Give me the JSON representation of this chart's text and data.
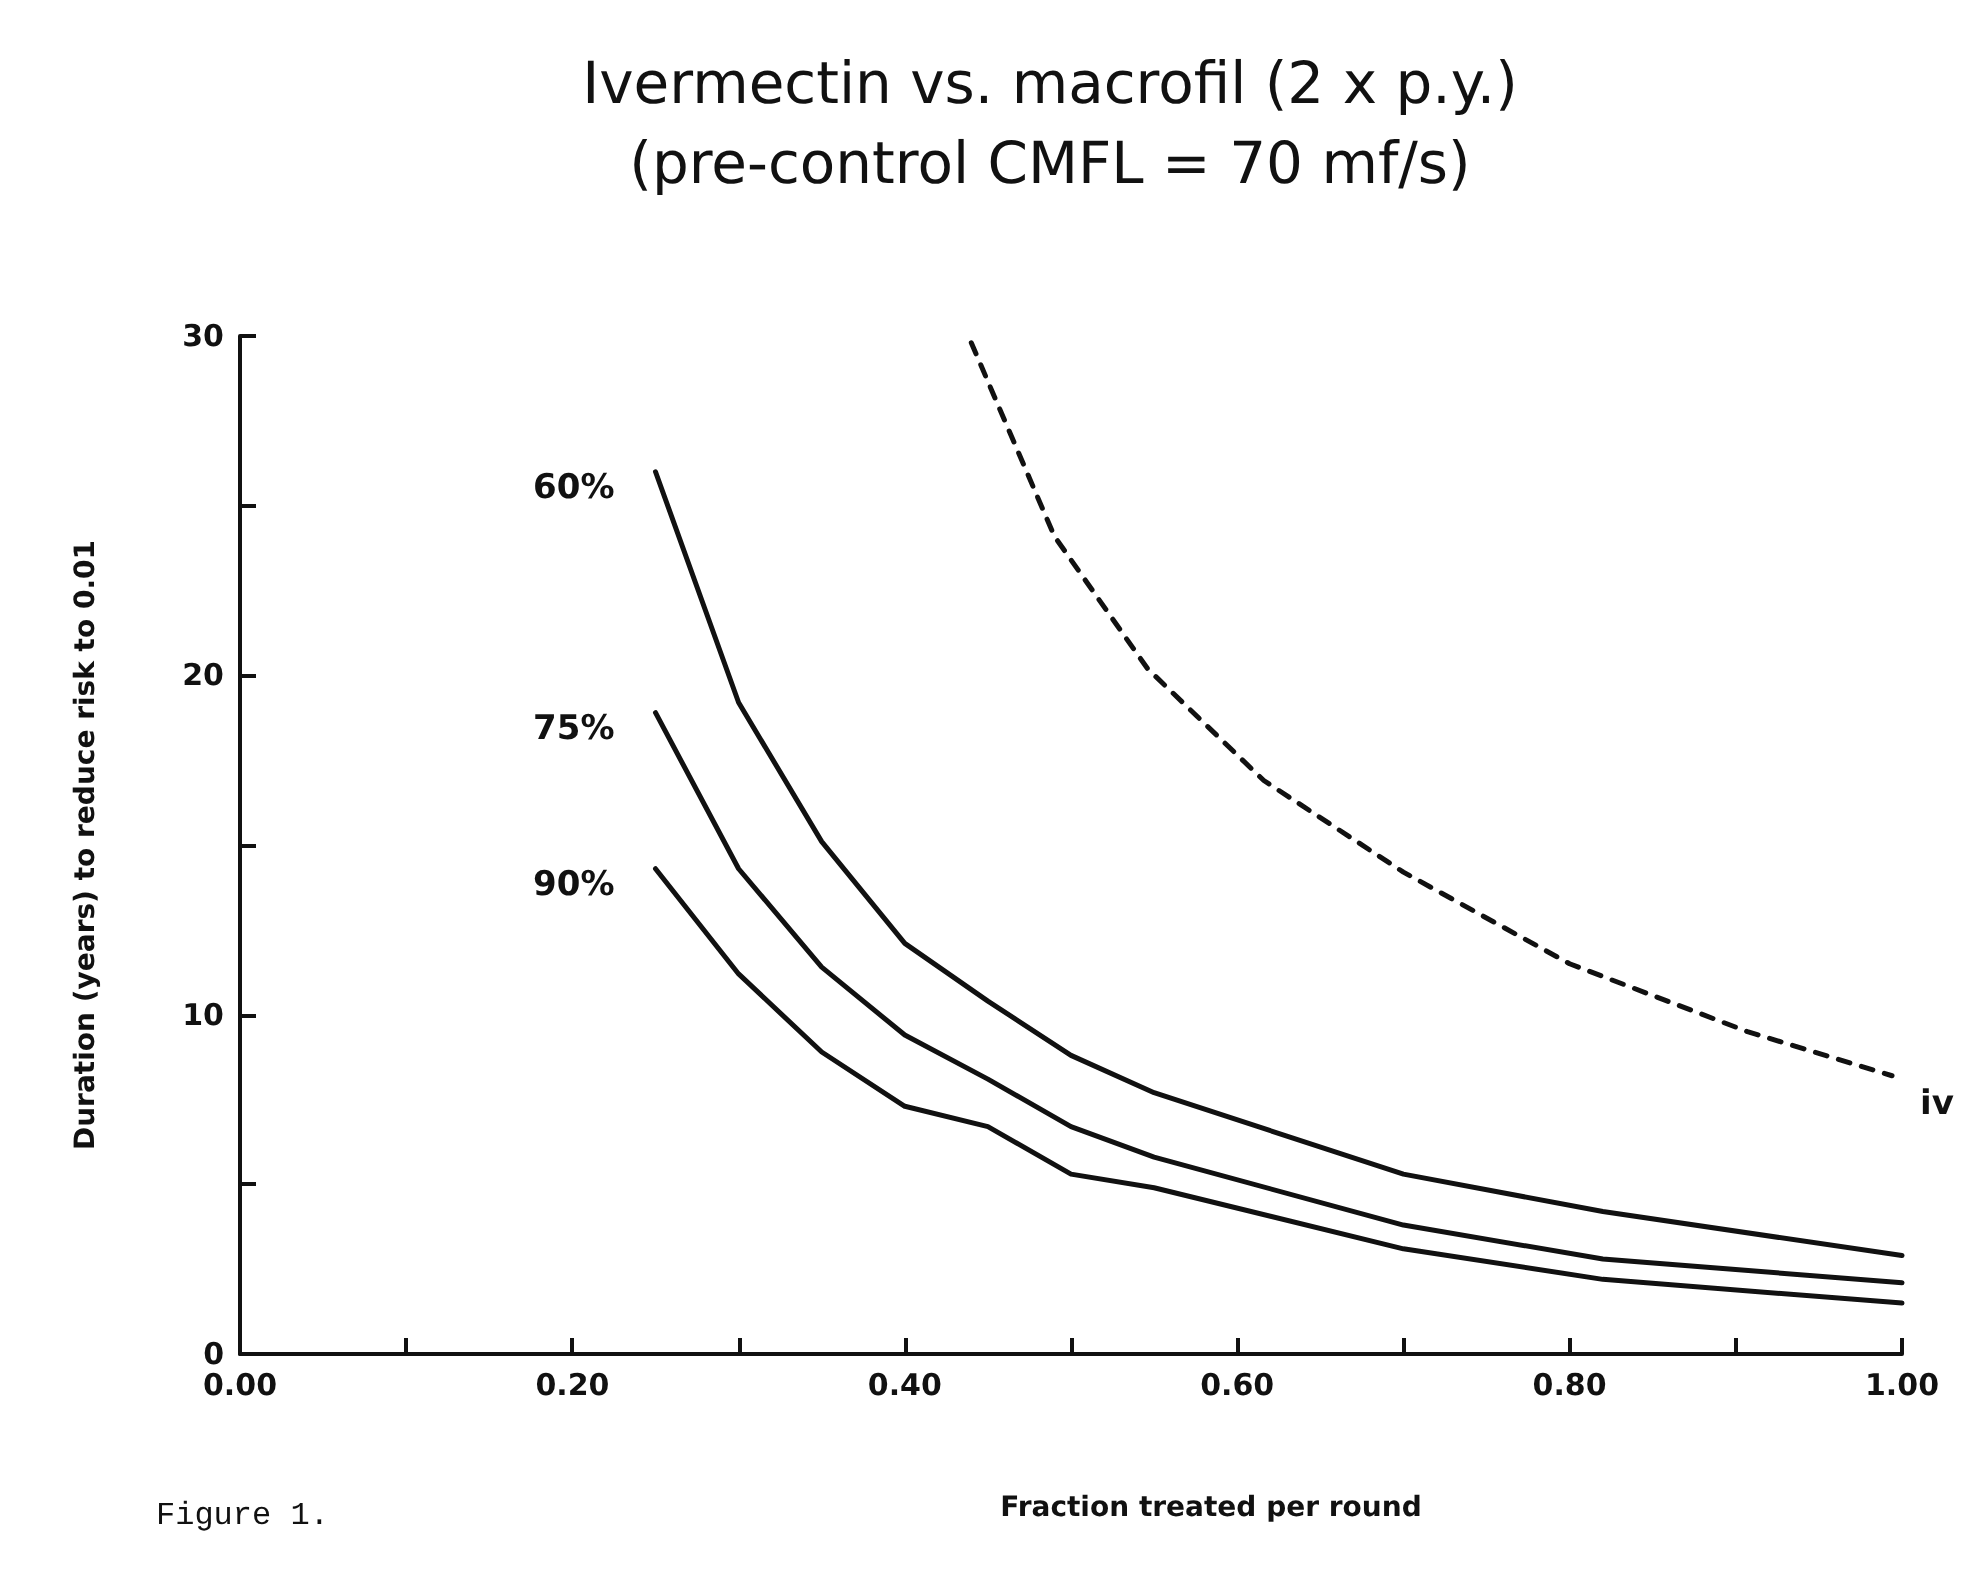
{
  "chart_data": {
    "type": "line",
    "title": "Ivermectin vs. macrofil (2 x p.y.)",
    "subtitle": "(pre-control CMFL = 70 mf/s)",
    "xlabel": "Fraction treated per round",
    "ylabel": "Duration (years) to reduce risk to 0.01",
    "xlim": [
      0,
      1
    ],
    "xticks": [
      {
        "value": 0,
        "label": "0.00"
      },
      {
        "value": 0.1,
        "label": null
      },
      {
        "value": 0.2,
        "label": "0.20"
      },
      {
        "value": 0.3,
        "label": null
      },
      {
        "value": 0.4,
        "label": "0.40"
      },
      {
        "value": 0.5,
        "label": null
      },
      {
        "value": 0.6,
        "label": "0.60"
      },
      {
        "value": 0.7,
        "label": null
      },
      {
        "value": 0.8,
        "label": "0.80"
      },
      {
        "value": 0.9,
        "label": null
      },
      {
        "value": 1,
        "label": "1.00"
      }
    ],
    "ylim": [
      0,
      30
    ],
    "yticks": [
      0,
      {
        "value": 5,
        "label": null
      },
      10,
      {
        "value": 15,
        "label": null
      },
      20,
      {
        "value": 25,
        "label": null
      },
      30
    ],
    "grid": false,
    "marker": "none",
    "series": [
      {
        "name": "60%",
        "color": "#111111",
        "line_style": "solid",
        "x": [
          0.25,
          0.3,
          0.35,
          0.4,
          0.45,
          0.5,
          0.55,
          0.7,
          0.82,
          1.0
        ],
        "values": [
          26.0,
          19.2,
          15.1,
          12.1,
          10.4,
          8.8,
          7.7,
          5.3,
          4.2,
          2.9
        ]
      },
      {
        "name": "75%",
        "color": "#111111",
        "line_style": "solid",
        "x": [
          0.25,
          0.3,
          0.35,
          0.4,
          0.45,
          0.5,
          0.55,
          0.7,
          0.82,
          1.0
        ],
        "values": [
          18.9,
          14.3,
          11.4,
          9.4,
          8.1,
          6.7,
          5.8,
          3.8,
          2.8,
          2.1
        ]
      },
      {
        "name": "90%",
        "color": "#111111",
        "line_style": "solid",
        "x": [
          0.25,
          0.3,
          0.35,
          0.4,
          0.45,
          0.5,
          0.55,
          0.7,
          0.82,
          1.0
        ],
        "values": [
          14.3,
          11.2,
          8.9,
          7.3,
          6.7,
          5.3,
          4.9,
          3.1,
          2.2,
          1.5
        ]
      },
      {
        "name": "iv",
        "color": "#111111",
        "line_style": "dashed",
        "x": [
          0.44,
          0.49,
          0.546,
          0.616,
          0.7,
          0.8,
          0.907,
          0.994
        ],
        "values": [
          29.8,
          24.1,
          20.2,
          16.9,
          14.2,
          11.5,
          9.5,
          8.2
        ]
      }
    ],
    "annotations": [
      "Figure 1."
    ]
  }
}
